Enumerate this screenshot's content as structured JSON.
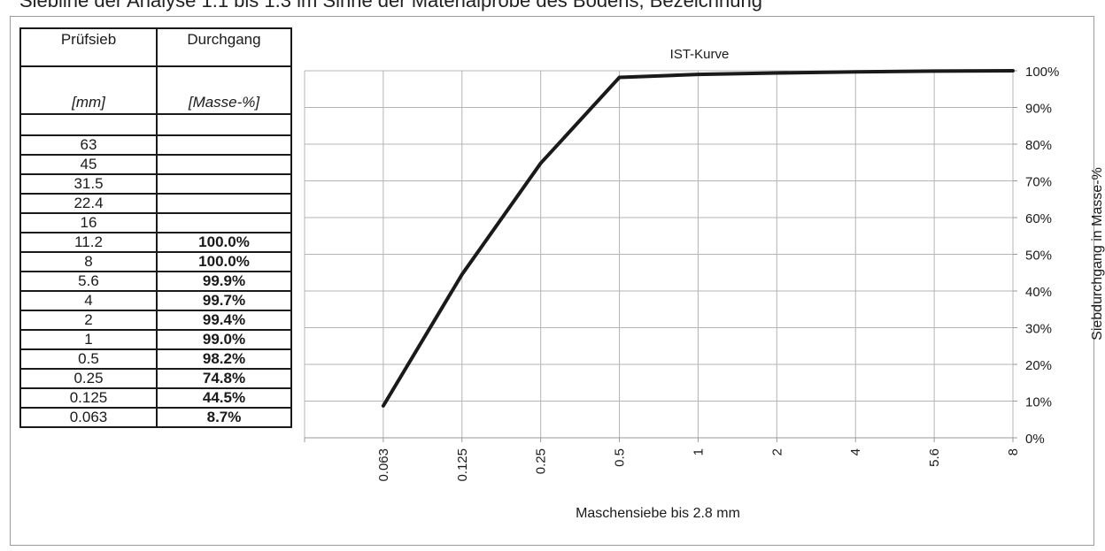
{
  "caption_fragment": "Siebline der Analyse 1.1 bis 1.3 im Sinne der Materialprobe des Bodens, Bezeichnung",
  "table": {
    "col1_header": "Prüfsieb",
    "col2_header": "Durchgang",
    "col1_unit": "[mm]",
    "col2_unit": "[Masse-%]",
    "rows": [
      {
        "sieve": "63",
        "passing": ""
      },
      {
        "sieve": "45",
        "passing": ""
      },
      {
        "sieve": "31.5",
        "passing": ""
      },
      {
        "sieve": "22.4",
        "passing": ""
      },
      {
        "sieve": "16",
        "passing": ""
      },
      {
        "sieve": "11.2",
        "passing": "100.0%"
      },
      {
        "sieve": "8",
        "passing": "100.0%"
      },
      {
        "sieve": "5.6",
        "passing": "99.9%"
      },
      {
        "sieve": "4",
        "passing": "99.7%"
      },
      {
        "sieve": "2",
        "passing": "99.4%"
      },
      {
        "sieve": "1",
        "passing": "99.0%"
      },
      {
        "sieve": "0.5",
        "passing": "98.2%"
      },
      {
        "sieve": "0.25",
        "passing": "74.8%"
      },
      {
        "sieve": "0.125",
        "passing": "44.5%"
      },
      {
        "sieve": "0.063",
        "passing": "8.7%"
      }
    ]
  },
  "chart_data": {
    "type": "line",
    "title": "IST-Kurve",
    "xlabel": "Maschensiebe bis 2.8 mm",
    "ylabel": "Siebdurchgang in Masse-%",
    "categories": [
      "0.063",
      "0.125",
      "0.25",
      "0.5",
      "1",
      "2",
      "4",
      "5.6",
      "8"
    ],
    "series": [
      {
        "values": [
          8.7,
          44.5,
          74.8,
          98.2,
          99.0,
          99.4,
          99.7,
          99.9,
          100.0
        ],
        "color": "#1a1a1a"
      }
    ],
    "ylim": [
      0,
      100
    ],
    "yticks": [
      "0%",
      "10%",
      "20%",
      "30%",
      "40%",
      "50%",
      "60%",
      "70%",
      "80%",
      "90%",
      "100%"
    ],
    "y_axis_side": "right",
    "grid": true
  }
}
